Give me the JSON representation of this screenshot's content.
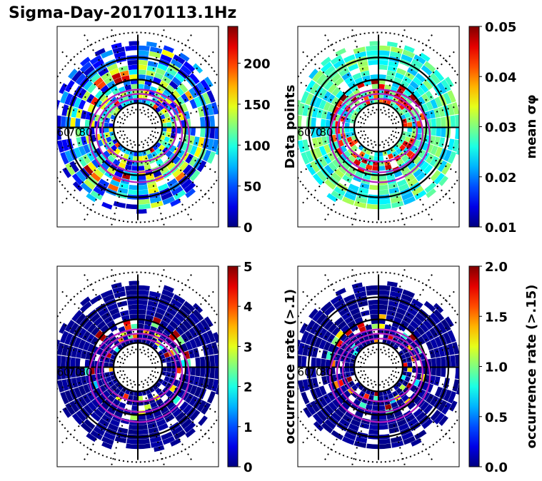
{
  "figure": {
    "title": "Sigma-Day-20170113.1Hz"
  },
  "chart_data": [
    {
      "type": "heatmap",
      "projection": "polar",
      "panel": "top-left",
      "ring_labels": [
        "60",
        "70",
        "80"
      ],
      "colormap": "jet",
      "colorbar": {
        "label": "Data points",
        "range": [
          0,
          245
        ],
        "ticks": [
          0,
          50,
          100,
          150,
          200
        ],
        "tick_labels": [
          "0",
          "50",
          "100",
          "150",
          "200"
        ]
      }
    },
    {
      "type": "heatmap",
      "projection": "polar",
      "panel": "top-right",
      "ring_labels": [
        "60",
        "70",
        "80"
      ],
      "colormap": "jet",
      "colorbar": {
        "label": "mean σφ",
        "range": [
          0.01,
          0.05
        ],
        "ticks": [
          0.01,
          0.02,
          0.03,
          0.04,
          0.05
        ],
        "tick_labels": [
          "0.01",
          "0.02",
          "0.03",
          "0.04",
          "0.05"
        ]
      }
    },
    {
      "type": "heatmap",
      "projection": "polar",
      "panel": "bottom-left",
      "ring_labels": [
        "60",
        "70",
        "80"
      ],
      "colormap": "jet",
      "colorbar": {
        "label": "occurrence rate (>.1)",
        "range": [
          0,
          5
        ],
        "ticks": [
          0,
          1,
          2,
          3,
          4,
          5
        ],
        "tick_labels": [
          "0",
          "1",
          "2",
          "3",
          "4",
          "5"
        ]
      }
    },
    {
      "type": "heatmap",
      "projection": "polar",
      "panel": "bottom-right",
      "ring_labels": [
        "60",
        "70",
        "80"
      ],
      "colormap": "jet",
      "colorbar": {
        "label": "occurrence rate (>.15)",
        "range": [
          0,
          2
        ],
        "ticks": [
          0,
          0.5,
          1,
          1.5,
          2
        ],
        "tick_labels": [
          "0.0",
          "0.5",
          "1.0",
          "1.5",
          "2.0"
        ]
      }
    }
  ]
}
